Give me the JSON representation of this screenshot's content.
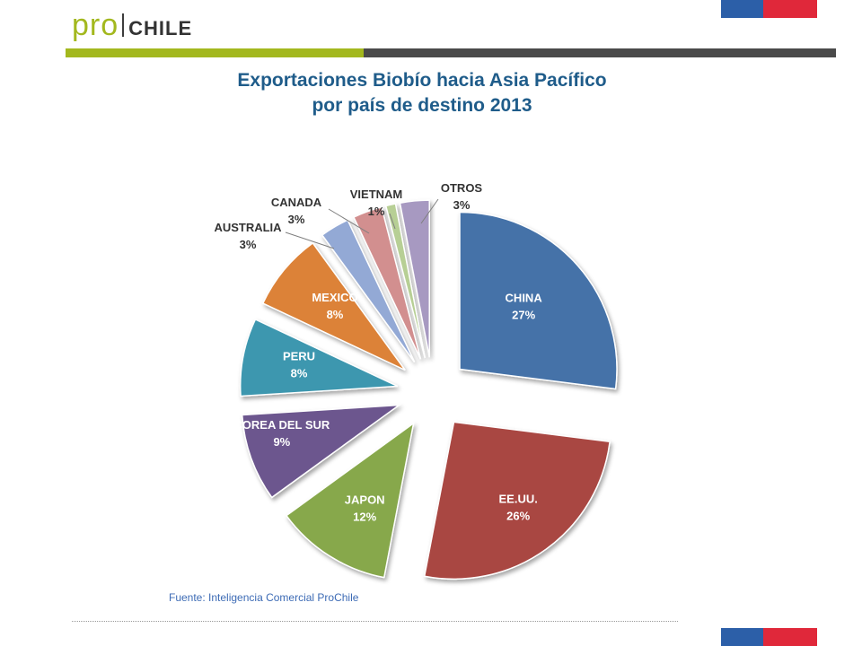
{
  "logo": {
    "pro": "pro",
    "chile": "CHILE"
  },
  "brand_colors": {
    "green": "#a3b81e",
    "dark": "#4a4a4a",
    "blue": "#2c5fa8",
    "red": "#e0283a"
  },
  "title_lines": [
    "Exportaciones Biobío hacia Asia Pacífico",
    "por país de destino 2013"
  ],
  "source": "Fuente: Inteligencia Comercial ProChile",
  "chart_data": {
    "type": "pie",
    "title": "Exportaciones Biobío hacia Asia Pacífico por país de destino 2013",
    "exploded": true,
    "slices": [
      {
        "label": "CHINA",
        "value": 27,
        "pct": "27%",
        "color": "#4472a8"
      },
      {
        "label": "EE.UU.",
        "value": 26,
        "pct": "26%",
        "color": "#a94643"
      },
      {
        "label": "JAPON",
        "value": 12,
        "pct": "12%",
        "color": "#87a84b"
      },
      {
        "label": "COREA DEL SUR",
        "value": 9,
        "pct": "9%",
        "color": "#6c578e"
      },
      {
        "label": "PERU",
        "value": 8,
        "pct": "8%",
        "color": "#3e97af"
      },
      {
        "label": "MEXICO",
        "value": 8,
        "pct": "8%",
        "color": "#dc8237"
      },
      {
        "label": "AUSTRALIA",
        "value": 3,
        "pct": "3%",
        "color": "#93a9d5"
      },
      {
        "label": "CANADA",
        "value": 3,
        "pct": "3%",
        "color": "#d28f8f"
      },
      {
        "label": "VIETNAM",
        "value": 1,
        "pct": "1%",
        "color": "#b7cf95"
      },
      {
        "label": "OTROS",
        "value": 3,
        "pct": "3%",
        "color": "#a799c1"
      }
    ]
  }
}
